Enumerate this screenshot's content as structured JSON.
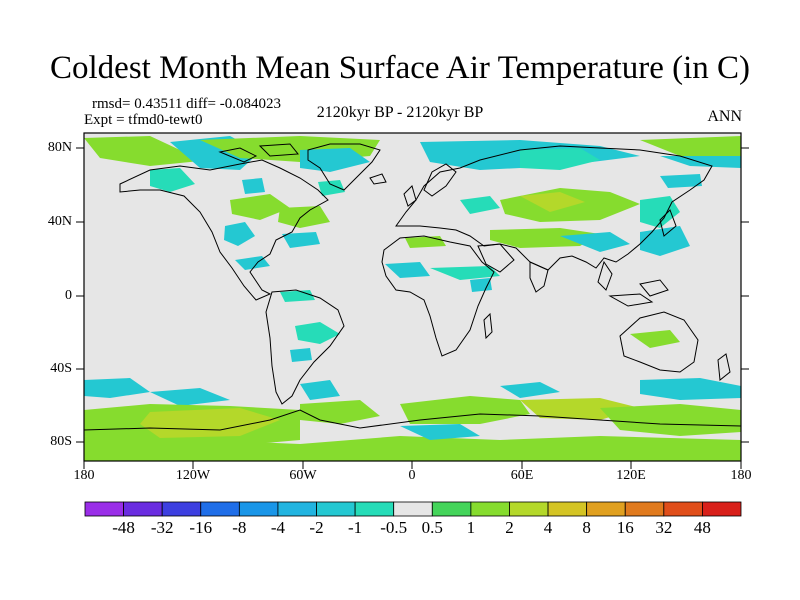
{
  "title": "Coldest Month Mean Surface Air Temperature (in C)",
  "stats": {
    "rmsd_diff": "rmsd= 0.43511 diff= -0.084023",
    "expt": "Expt = tfmd0-tewt0"
  },
  "subtitle": "2120kyr BP - 2120kyr BP",
  "period": "ANN",
  "lat_labels": [
    "80N",
    "40N",
    "0",
    "40S",
    "80S"
  ],
  "lon_labels": [
    "180",
    "120W",
    "60W",
    "0",
    "60E",
    "120E",
    "180"
  ],
  "colorbar": {
    "labels": [
      "-48",
      "-32",
      "-16",
      "-8",
      "-4",
      "-2",
      "-1",
      "-0.5",
      "0.5",
      "1",
      "2",
      "4",
      "8",
      "16",
      "32",
      "48"
    ],
    "colors": [
      "#9a2ee8",
      "#6a2ce0",
      "#3d3fe0",
      "#1f6ee8",
      "#1a96e8",
      "#22b4e0",
      "#24c8d2",
      "#26dcb8",
      "#e6e6e6",
      "#44d45a",
      "#86dc2e",
      "#b4d82a",
      "#d4c424",
      "#e0a020",
      "#e07a1e",
      "#e04e1a",
      "#d8201a"
    ]
  },
  "map_colors": {
    "background": "#e6e6e6",
    "teal": "#24c8d2",
    "aqua": "#26dcb8",
    "green": "#86dc2e",
    "lime": "#b4d82a",
    "coast": "#000000"
  }
}
